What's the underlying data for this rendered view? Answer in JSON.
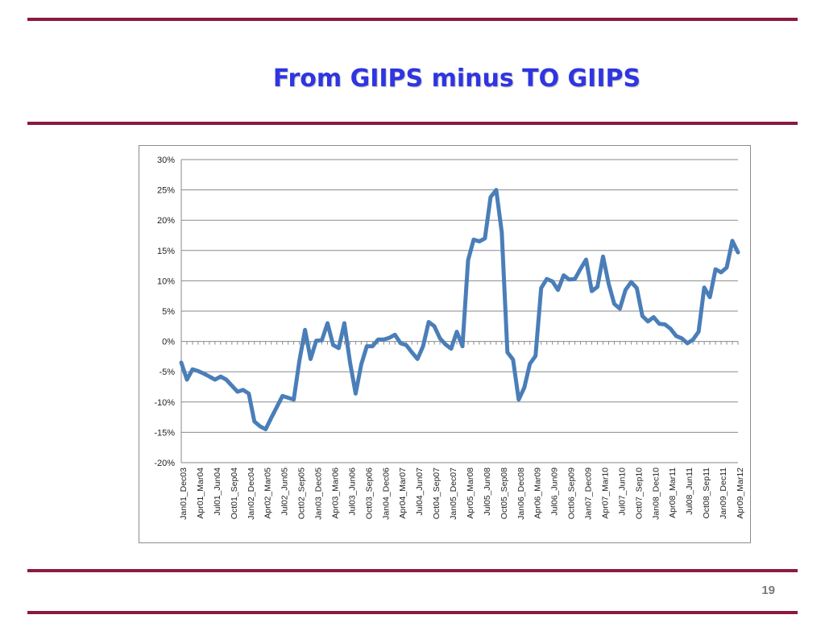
{
  "slide": {
    "title": "From GIIPS minus TO GIIPS",
    "page_number": "19",
    "accent_color": "#8b1a3f",
    "title_color": "#2f35e0"
  },
  "chart_data": {
    "type": "line",
    "title": "",
    "xlabel": "",
    "ylabel": "",
    "ylim": [
      -20,
      30
    ],
    "yticks": [
      30,
      25,
      20,
      15,
      10,
      5,
      0,
      -5,
      -10,
      -15,
      -20
    ],
    "ytick_labels": [
      "30%",
      "25%",
      "20%",
      "15%",
      "10%",
      "5%",
      "0%",
      "-5%",
      "-10%",
      "-15%",
      "-20%"
    ],
    "grid": true,
    "legend": "none",
    "series_color": "#4a7eb8",
    "category_labels": [
      "Jan01_Dec03",
      "Apr01_Mar04",
      "Jul01_Jun04",
      "Oct01_Sep04",
      "Jan02_Dec04",
      "Apr02_Mar05",
      "Jul02_Jun05",
      "Oct02_Sep05",
      "Jan03_Dec05",
      "Apr03_Mar06",
      "Jul03_Jun06",
      "Oct03_Sep06",
      "Jan04_Dec06",
      "Apr04_Mar07",
      "Jul04_Jun07",
      "Oct04_Sep07",
      "Jan05_Dec07",
      "Apr05_Mar08",
      "Jul05_Jun08",
      "Oct05_Sep08",
      "Jan06_Dec08",
      "Apr06_Mar09",
      "Jul06_Jun09",
      "Oct06_Sep09",
      "Jan07_Dec09",
      "Apr07_Mar10",
      "Jul07_Jun10",
      "Oct07_Sep10",
      "Jan08_Dec10",
      "Apr08_Mar11",
      "Jul08_Jun11",
      "Oct08_Sep11",
      "Jan09_Dec11",
      "Apr09_Mar12"
    ],
    "series": [
      {
        "values": [
          -3.5,
          -6.3,
          -4.6,
          -4.9,
          -5.3,
          -5.8,
          -6.3,
          -5.8,
          -6.3,
          -7.3,
          -8.3,
          -8.0,
          -8.6,
          -13.2,
          -14.0,
          -14.5,
          -12.6,
          -10.8,
          -9.0,
          -9.3,
          -9.6,
          -3.2,
          1.9,
          -2.9,
          0.1,
          0.2,
          3.0,
          -0.6,
          -1.1,
          3.0,
          -3.4,
          -8.6,
          -3.8,
          -0.8,
          -0.8,
          0.3,
          0.3,
          0.6,
          1.1,
          -0.3,
          -0.6,
          -1.8,
          -2.9,
          -0.8,
          3.2,
          2.5,
          0.5,
          -0.5,
          -1.2,
          1.6,
          -0.8,
          13.4,
          16.8,
          16.5,
          17.0,
          23.8,
          25.0,
          18.0,
          -1.8,
          -3.0,
          -9.6,
          -7.6,
          -3.7,
          -2.4,
          8.8,
          10.3,
          9.9,
          8.5,
          10.9,
          10.2,
          10.3,
          12.0,
          13.5,
          8.3,
          9.0,
          14.0,
          9.5,
          6.2,
          5.4,
          8.5,
          9.8,
          8.8,
          4.2,
          3.3,
          4.0,
          2.9,
          2.8,
          2.1,
          0.9,
          0.5,
          -0.3,
          0.3,
          1.6,
          8.9,
          7.3,
          11.9,
          11.4,
          12.2,
          16.6,
          14.7
        ]
      }
    ]
  }
}
